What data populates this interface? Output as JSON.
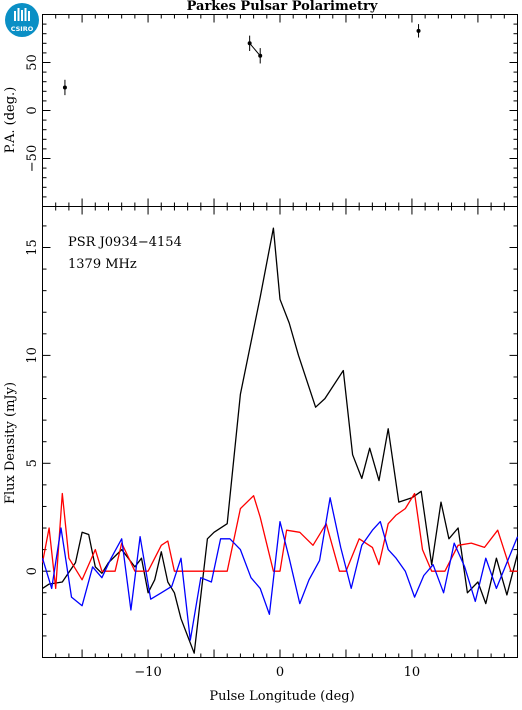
{
  "logo": {
    "text": "CSIRO",
    "color": "#0a8fc5"
  },
  "chart_data": {
    "title": "Parkes Pulsar Polarimetry",
    "xlabel": "Pulse Longitude (deg)",
    "xlim": [
      -18,
      18
    ],
    "x_ticks": [
      -10,
      0,
      10
    ],
    "source_name": "PSR J0934−4154",
    "frequency": "1379 MHz",
    "panels": [
      {
        "id": "pa",
        "type": "scatter",
        "ylabel": "P.A. (deg.)",
        "ylim": [
          -100,
          100
        ],
        "y_ticks": [
          -50,
          0,
          50
        ],
        "points": [
          {
            "x": -16.3,
            "y": 24,
            "err": 8
          },
          {
            "x": -2.3,
            "y": 70,
            "err": 8
          },
          {
            "x": -1.5,
            "y": 57,
            "err": 8
          },
          {
            "x": 10.5,
            "y": 83,
            "err": 7
          }
        ],
        "connected": [
          [
            1,
            2
          ]
        ]
      },
      {
        "id": "flux",
        "type": "line",
        "ylabel": "Flux Density (mJy)",
        "ylim": [
          -4,
          16.9
        ],
        "y_ticks": [
          0,
          5,
          10,
          15
        ],
        "series": [
          {
            "color": "#000000",
            "x": [
              -18,
              -17.5,
              -16.5,
              -15.5,
              -15,
              -14.5,
              -14,
              -13.5,
              -13,
              -12,
              -11,
              -10.5,
              -10,
              -9.5,
              -9,
              -8.5,
              -8,
              -7.5,
              -6.5,
              -5.5,
              -5,
              -4,
              -3,
              -2,
              -1.5,
              -0.5,
              0,
              0.7,
              1.4,
              2.7,
              3.4,
              4.8,
              5.5,
              6.2,
              6.8,
              7.5,
              8.2,
              9,
              10,
              10.7,
              11.5,
              12.2,
              12.8,
              13.5,
              14.2,
              15,
              15.6,
              16.4,
              17.2,
              18
            ],
            "y": [
              -0.8,
              -0.6,
              -0.5,
              0.4,
              1.8,
              1.7,
              0.2,
              -0.1,
              0.4,
              1.0,
              0.2,
              0.6,
              -1.0,
              -0.4,
              0.9,
              -0.5,
              -1.0,
              -2.2,
              -3.8,
              1.5,
              1.8,
              2.2,
              8.2,
              11.2,
              12.7,
              15.9,
              12.6,
              11.5,
              10.0,
              7.6,
              8.0,
              9.3,
              5.4,
              4.3,
              5.7,
              4.2,
              6.6,
              3.2,
              3.4,
              3.7,
              0.3,
              3.2,
              1.5,
              2.0,
              -1.0,
              -0.5,
              -1.5,
              0.6,
              -1.1,
              0.8
            ]
          },
          {
            "color": "#ff0000",
            "x": [
              -18,
              -17.5,
              -17,
              -16.5,
              -16,
              -15,
              -14,
              -13.5,
              -12.5,
              -12,
              -11,
              -10,
              -9,
              -8.5,
              -8,
              -7,
              -6.5,
              -6,
              -5,
              -4,
              -3,
              -2,
              -1.5,
              -0.5,
              0,
              0.5,
              1.5,
              2.5,
              3.5,
              4.5,
              5,
              6,
              7,
              7.5,
              8.2,
              8.8,
              9.5,
              10.2,
              10.8,
              11.5,
              12.5,
              13.5,
              14.5,
              15.5,
              16.5,
              17.5,
              18
            ],
            "y": [
              0.4,
              2.0,
              -0.8,
              3.6,
              0.6,
              -0.4,
              1.0,
              0.0,
              0.0,
              1.3,
              0.0,
              0.0,
              1.2,
              1.4,
              0.0,
              0.0,
              0.0,
              0.0,
              0.0,
              0.0,
              2.9,
              3.5,
              2.5,
              0.0,
              0.0,
              1.9,
              1.8,
              1.2,
              2.2,
              0.0,
              0.0,
              1.5,
              1.1,
              0.3,
              2.2,
              2.6,
              2.9,
              3.6,
              1.0,
              0.0,
              0.0,
              1.2,
              1.3,
              1.1,
              1.9,
              0.0,
              0.0
            ]
          },
          {
            "color": "#0000ff",
            "x": [
              -18,
              -17.3,
              -16.6,
              -15.8,
              -15,
              -14.2,
              -13.5,
              -12.8,
              -12,
              -11.3,
              -10.6,
              -9.8,
              -9,
              -8.2,
              -7.5,
              -6.8,
              -6,
              -5.2,
              -4.5,
              -3.8,
              -3,
              -2.2,
              -1.5,
              -0.8,
              0,
              0.7,
              1.5,
              2.2,
              3,
              3.8,
              4.6,
              5.4,
              6.2,
              7,
              7.6,
              8.2,
              8.8,
              9.5,
              10.2,
              10.9,
              11.6,
              12.4,
              13.2,
              14,
              14.8,
              15.6,
              16.4,
              17.2,
              18
            ],
            "y": [
              0.6,
              -0.8,
              2.0,
              -1.2,
              -1.6,
              0.2,
              -0.3,
              0.6,
              1.5,
              -1.8,
              1.6,
              -1.3,
              -1.0,
              -0.7,
              0.6,
              -3.2,
              -0.3,
              -0.5,
              1.5,
              1.5,
              1.0,
              -0.3,
              -0.8,
              -2.0,
              2.3,
              0.6,
              -1.5,
              -0.4,
              0.5,
              3.4,
              1.1,
              -0.8,
              1.2,
              1.9,
              2.3,
              1.0,
              0.6,
              0.0,
              -1.2,
              -0.2,
              0.3,
              -1.0,
              1.3,
              0.2,
              -1.4,
              0.6,
              -0.8,
              0.4,
              1.6
            ]
          }
        ]
      }
    ]
  }
}
